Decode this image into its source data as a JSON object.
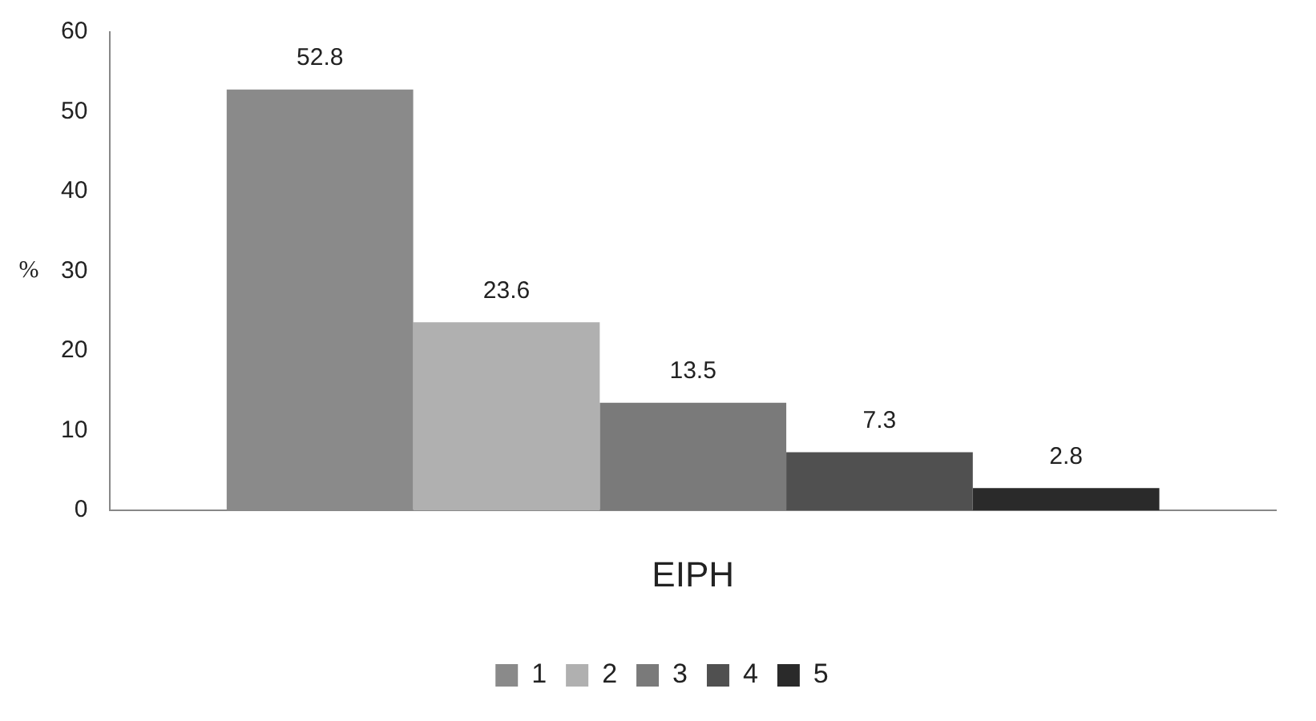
{
  "chart_data": {
    "type": "bar",
    "categories": [
      "EIPH"
    ],
    "ylabel": "%",
    "ylim": [
      0,
      60
    ],
    "yticks": [
      0,
      10,
      20,
      30,
      40,
      50,
      60
    ],
    "grid": false,
    "legend": "bottom",
    "data_labels": true,
    "series": [
      {
        "name": "1",
        "color": "#8a8a8a",
        "values": [
          52.8
        ]
      },
      {
        "name": "2",
        "color": "#b0b0b0",
        "values": [
          23.6
        ]
      },
      {
        "name": "3",
        "color": "#7a7a7a",
        "values": [
          13.5
        ]
      },
      {
        "name": "4",
        "color": "#505050",
        "values": [
          7.3
        ]
      },
      {
        "name": "5",
        "color": "#2a2a2a",
        "values": [
          2.8
        ]
      }
    ]
  }
}
